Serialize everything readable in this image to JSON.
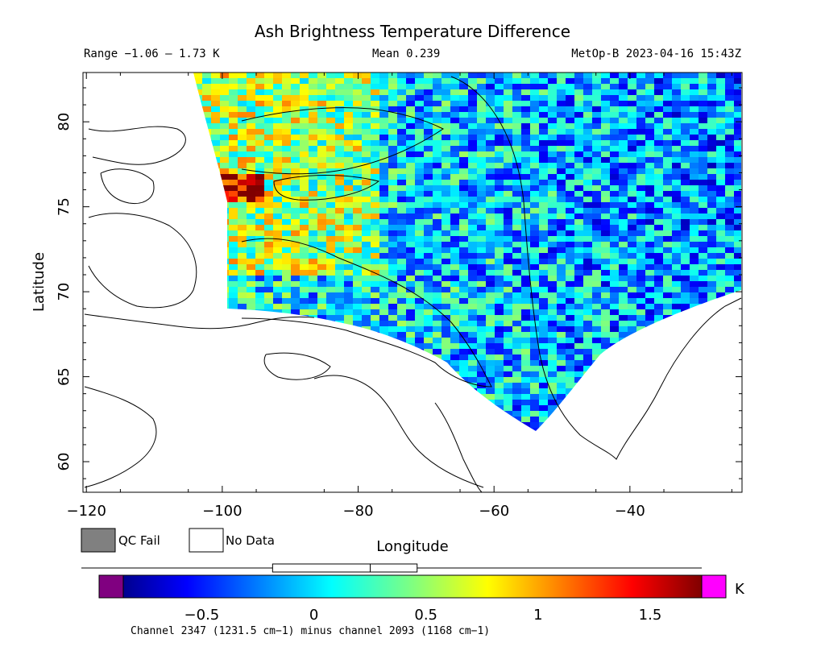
{
  "title": "Ash Brightness Temperature Difference",
  "stats": {
    "range": "Range −1.06 – 1.73 K",
    "mean": "Mean 0.239",
    "satellite": "MetOp-B 2023-04-16 15:43Z"
  },
  "axes": {
    "xlabel": "Longitude",
    "ylabel": "Latitude",
    "x_ticks": [
      "−120",
      "−100",
      "−80",
      "−60",
      "−40"
    ],
    "y_ticks": [
      "80",
      "75",
      "70",
      "65",
      "60"
    ],
    "xlim": [
      -120.5,
      -23.5
    ],
    "ylim": [
      58.2,
      82.9
    ]
  },
  "legend": {
    "qc_fail": "QC Fail",
    "no_data": "No Data",
    "qc_fail_color": "#808080",
    "no_data_color": "#ffffff"
  },
  "colorbar": {
    "unit": "K",
    "ticks": [
      "−0.5",
      "0",
      "0.5",
      "1",
      "1.5"
    ],
    "tick_values": [
      -0.5,
      0,
      0.5,
      1,
      1.5
    ],
    "vmin": -0.85,
    "vmax": 1.73,
    "under_color": "#800080",
    "over_color": "#ff00ff",
    "boxplot": {
      "min": -1.06,
      "q1": -0.2,
      "median": 0.239,
      "q3": 0.45,
      "max": 1.73
    },
    "caption": "Channel 2347 (1231.5 cm−1) minus channel 2093 (1168 cm−1)"
  },
  "colors": {
    "background": "#ffffff",
    "frame": "#000000",
    "coast": "#000000"
  }
}
